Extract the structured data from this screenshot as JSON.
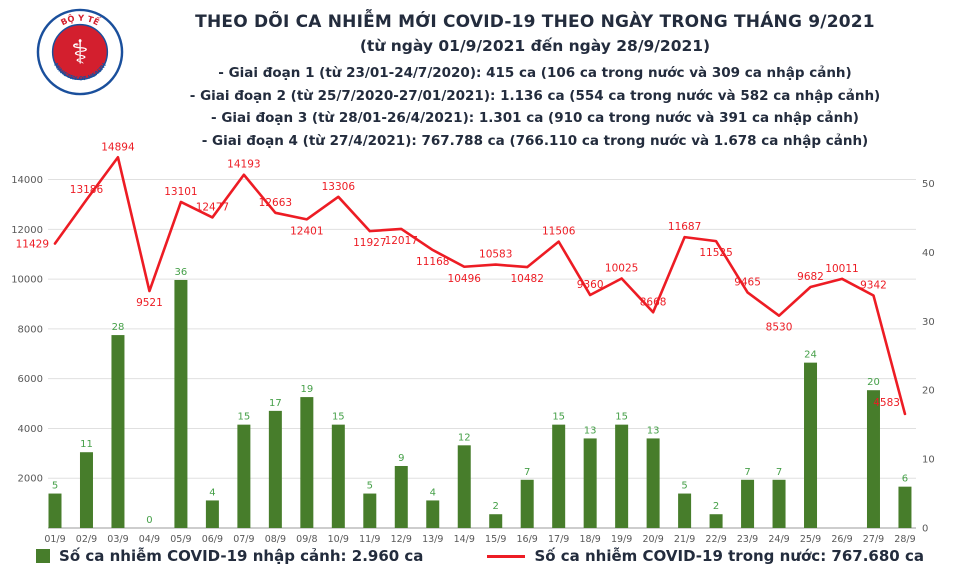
{
  "header": {
    "logo": {
      "top_text": "BỘ Y TẾ",
      "bottom_text": "MINISTRY OF HEALTH"
    },
    "title": "THEO DÕI CA NHIỄM MỚI COVID-19 THEO NGÀY TRONG THÁNG 9/2021",
    "subtitle": "(từ ngày 01/9/2021 đến ngày 28/9/2021)",
    "stages": [
      "- Giai đoạn 1 (từ 23/01-24/7/2020): 415 ca (106 ca trong nước và 309 ca nhập cảnh)",
      "- Giai đoạn 2 (từ 25/7/2020-27/01/2021): 1.136 ca (554 ca trong nước và 582 ca nhập cảnh)",
      "- Giai đoạn 3 (từ 28/01-26/4/2021): 1.301 ca (910 ca trong nước và 391 ca nhập cảnh)",
      "- Giai đoạn 4 (từ 27/4/2021): 767.788 ca (766.110 ca trong nước và 1.678 ca nhập cảnh)"
    ]
  },
  "chart_data": {
    "type": "combo",
    "title": "THEO DÕI CA NHIỄM MỚI COVID-19 THEO NGÀY TRONG THÁNG 9/2021",
    "categories": [
      "01/9",
      "02/9",
      "03/9",
      "04/9",
      "05/9",
      "06/9",
      "07/9",
      "08/9",
      "09/8",
      "10/9",
      "11/9",
      "12/9",
      "13/9",
      "14/9",
      "15/9",
      "16/9",
      "17/9",
      "18/9",
      "19/9",
      "20/9",
      "21/9",
      "22/9",
      "23/9",
      "24/9",
      "25/9",
      "26/9",
      "27/9",
      "28/9"
    ],
    "series": [
      {
        "name": "Số ca nhiễm COVID-19 nhập cảnh",
        "type": "bar",
        "axis": "right",
        "color": "#477d2b",
        "label_color": "#46a049",
        "values": [
          5,
          11,
          28,
          0,
          36,
          4,
          15,
          17,
          19,
          15,
          5,
          9,
          4,
          12,
          2,
          7,
          15,
          13,
          15,
          13,
          5,
          2,
          7,
          7,
          24,
          0,
          20,
          6
        ],
        "labels": [
          "5",
          "11",
          "28",
          "0",
          "36",
          "4",
          "15",
          "17",
          "19",
          "15",
          "5",
          "9",
          "4",
          "12",
          "2",
          "7",
          "15",
          "13",
          "15",
          "13",
          "5",
          "2",
          "7",
          "7",
          "24",
          "",
          "20",
          "6"
        ]
      },
      {
        "name": "Số ca nhiễm COVID-19 trong nước",
        "type": "line",
        "axis": "left",
        "color": "#ed1c24",
        "values": [
          11429,
          13186,
          14894,
          9521,
          13101,
          12477,
          14193,
          12663,
          12401,
          13306,
          11927,
          12017,
          11168,
          10496,
          10583,
          10482,
          11506,
          9360,
          10025,
          8668,
          11687,
          11525,
          9465,
          8530,
          9682,
          10011,
          9342,
          4583
        ],
        "label_side": [
          "l",
          "a",
          "a",
          "b",
          "a",
          "a",
          "a",
          "a",
          "b",
          "a",
          "b",
          "b",
          "b",
          "b",
          "a",
          "b",
          "a",
          "a",
          "a",
          "a",
          "a",
          "b",
          "a",
          "b",
          "a",
          "a",
          "a",
          "e"
        ]
      }
    ],
    "left_axis": {
      "ticks": [
        2000,
        4000,
        6000,
        8000,
        10000,
        12000,
        14000
      ],
      "min": 0,
      "max": 15000
    },
    "right_axis": {
      "ticks": [
        0,
        10,
        20,
        30,
        40,
        50
      ],
      "min": 0,
      "max": 55
    },
    "gridlines": true,
    "legend_position": "bottom"
  },
  "legend": {
    "imported": {
      "label": "Số ca nhiễm COVID-19 nhập cảnh: 2.960 ca",
      "color": "#477d2b"
    },
    "domestic": {
      "label": "Số ca nhiễm COVID-19 trong nước: 767.680 ca",
      "color": "#ed1c24"
    }
  }
}
